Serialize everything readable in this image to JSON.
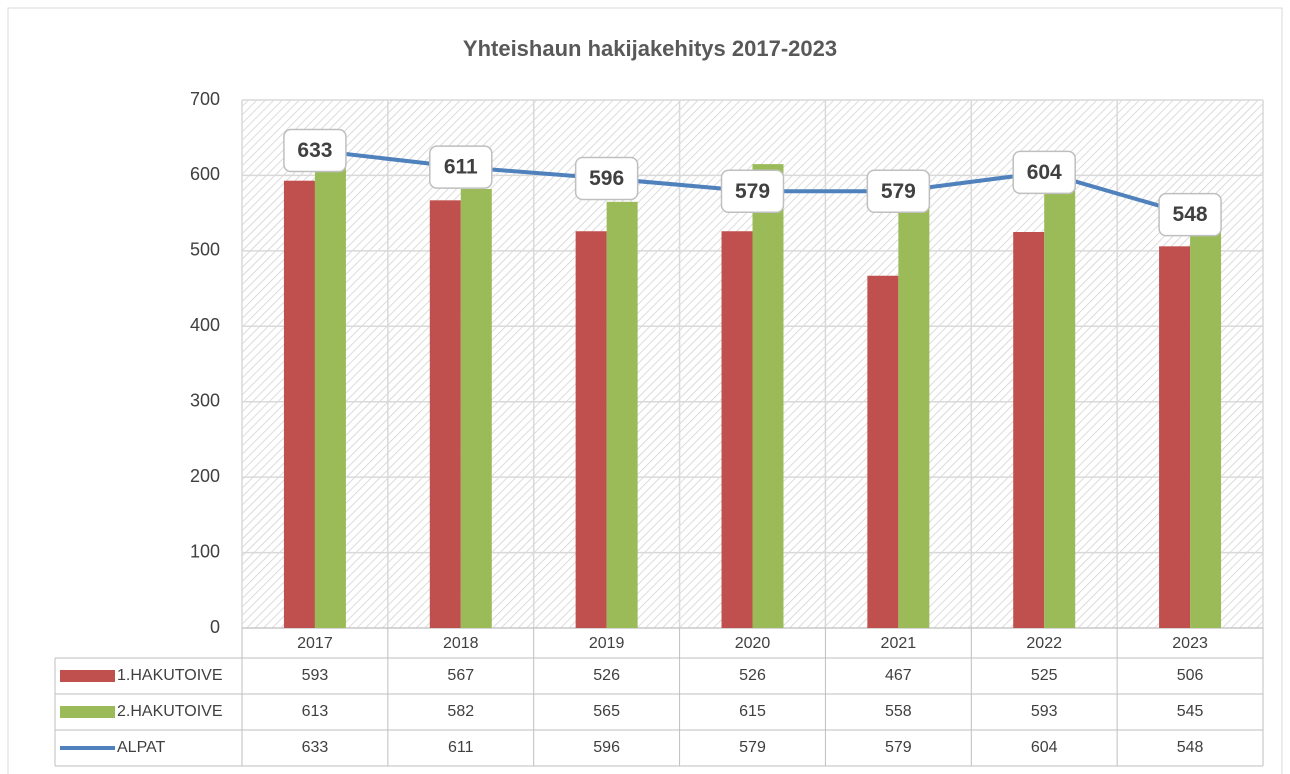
{
  "chart_data": {
    "type": "bar",
    "title": "Yhteishaun hakijakehitys 2017-2023",
    "categories": [
      "2017",
      "2018",
      "2019",
      "2020",
      "2021",
      "2022",
      "2023"
    ],
    "series": [
      {
        "name": "1.HAKUTOIVE",
        "color": "#c0504d",
        "type": "bar",
        "values": [
          593,
          567,
          526,
          526,
          467,
          525,
          506
        ]
      },
      {
        "name": "2.HAKUTOIVE",
        "color": "#9bbb59",
        "type": "bar",
        "values": [
          613,
          582,
          565,
          615,
          558,
          593,
          545
        ]
      },
      {
        "name": "ALPAT",
        "color": "#4f81bd",
        "type": "line",
        "values": [
          633,
          611,
          596,
          579,
          579,
          604,
          548
        ]
      }
    ],
    "ylim": [
      0,
      700
    ],
    "yticks": [
      0,
      100,
      200,
      300,
      400,
      500,
      600,
      700
    ],
    "grid": true
  }
}
